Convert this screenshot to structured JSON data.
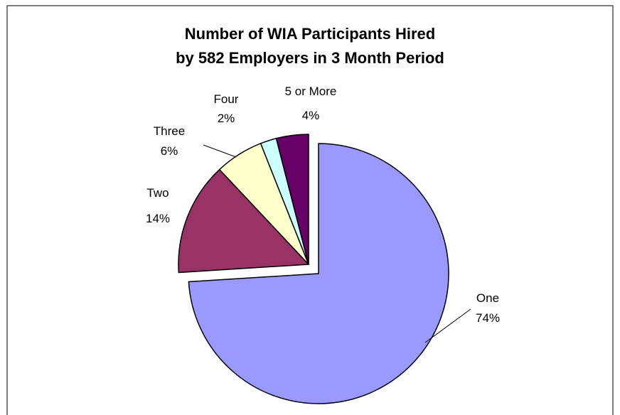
{
  "chart_data": {
    "type": "pie",
    "title": [
      "Number of WIA Participants Hired",
      "by 582 Employers in 3 Month Period"
    ],
    "categories": [
      "One",
      "Two",
      "Three",
      "Four",
      "5 or More"
    ],
    "values": [
      74,
      14,
      6,
      2,
      4
    ],
    "value_labels": [
      "74%",
      "14%",
      "6%",
      "2%",
      "4%"
    ],
    "colors": [
      "#9999ff",
      "#993366",
      "#ffffcc",
      "#ccffff",
      "#660066"
    ]
  }
}
